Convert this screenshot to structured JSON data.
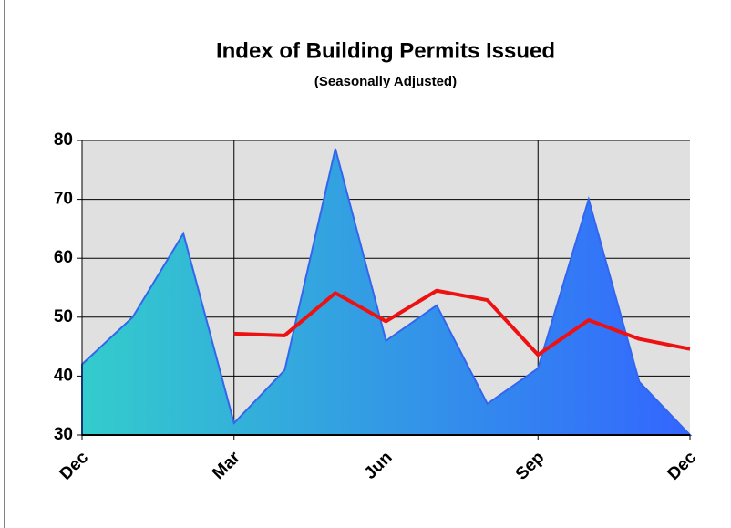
{
  "chart_data": {
    "type": "area",
    "title": "Index of Building Permits Issued",
    "subtitle": "(Seasonally Adjusted)",
    "categories": [
      "Dec",
      null,
      null,
      "Mar",
      null,
      null,
      "Jun",
      null,
      null,
      "Sep",
      null,
      null,
      "Dec"
    ],
    "series": [
      {
        "type": "area",
        "gradient": [
          "#33cccc",
          "#3366ff"
        ],
        "color": "#3366ee",
        "values": [
          42,
          50,
          64.2,
          32,
          41,
          78.6,
          46,
          52,
          35.3,
          41.3,
          70,
          39,
          30
        ]
      },
      {
        "type": "line",
        "color": "#ee1111",
        "values": [
          null,
          null,
          null,
          47.2,
          46.9,
          54.1,
          49.3,
          54.5,
          52.9,
          43.6,
          49.5,
          46.3,
          44.6
        ]
      }
    ],
    "ylim": [
      30,
      80
    ],
    "yticks": [
      30,
      40,
      50,
      60,
      70,
      80
    ],
    "grid": true
  }
}
